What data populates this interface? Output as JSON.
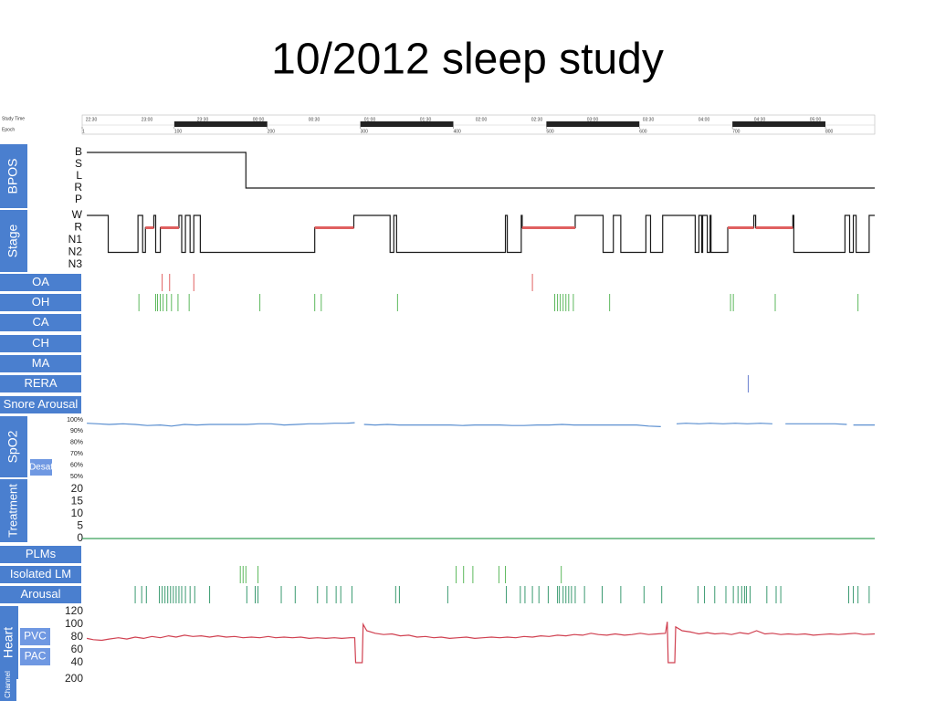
{
  "title": "10/2012 sleep study",
  "timeline": {
    "study_time_label": "Study Time",
    "epoch_label": "Epoch",
    "times": [
      "22:30",
      "23:00",
      "23:30",
      "00:00",
      "00:30",
      "01:00",
      "01:30",
      "02:00",
      "02:30",
      "03:00",
      "03:30",
      "04:00",
      "04:30",
      "05:00"
    ],
    "epoch_ticks": [
      1,
      100,
      200,
      300,
      400,
      500,
      600,
      700,
      800
    ],
    "xlim": [
      1,
      853
    ]
  },
  "bpos": {
    "label": "BPOS",
    "levels": [
      "B",
      "S",
      "L",
      "R",
      "P"
    ],
    "color": "#1a1a1a",
    "x": [
      6,
      177,
      853
    ],
    "values": [
      "B",
      "R",
      "R"
    ]
  },
  "stage": {
    "label": "Stage",
    "levels": [
      "W",
      "R",
      "N1",
      "N2",
      "N3"
    ],
    "color": "#1a1a1a",
    "highlight": {
      "level": "R",
      "color": "#e06060"
    },
    "x": [
      6,
      29,
      61,
      66,
      69,
      78,
      80,
      85,
      105,
      108,
      112,
      117,
      121,
      128,
      251,
      293,
      332,
      336,
      339,
      456,
      458,
      473,
      474,
      531,
      561,
      572,
      580,
      607,
      612,
      625,
      660,
      664,
      667,
      668,
      673,
      676,
      677,
      695,
      723,
      725,
      765,
      766,
      821,
      826,
      830,
      833,
      847,
      853
    ],
    "values": [
      "W",
      "N2",
      "W",
      "N2",
      "R",
      "W",
      "N2",
      "R",
      "W",
      "N2",
      "W",
      "N2",
      "W",
      "N2",
      "R",
      "W",
      "N2",
      "W",
      "N2",
      "W",
      "N2",
      "W",
      "R",
      "W",
      "N2",
      "W",
      "N2",
      "W",
      "N2",
      "W",
      "N2",
      "W",
      "N2",
      "W",
      "N2",
      "W",
      "N2",
      "R",
      "W",
      "R",
      "W",
      "N2",
      "W",
      "N2",
      "W",
      "N2",
      "W",
      "W"
    ]
  },
  "events": [
    {
      "label": "OA",
      "color": "#e06060",
      "x": [
        87,
        95,
        121,
        485
      ]
    },
    {
      "label": "OH",
      "color": "#5cb85c",
      "x": [
        62,
        80,
        82,
        85,
        88,
        92,
        97,
        104,
        116,
        192,
        251,
        258,
        340,
        509,
        512,
        515,
        518,
        521,
        524,
        529,
        568,
        698,
        701,
        746,
        835
      ]
    },
    {
      "label": "CA",
      "x": []
    },
    {
      "label": "CH",
      "x": []
    },
    {
      "label": "MA",
      "x": []
    },
    {
      "label": "RERA",
      "color": "#6a80d0",
      "x": [
        717
      ]
    },
    {
      "label": "Snore Arousal",
      "x": []
    }
  ],
  "spo2": {
    "label": "SpO2",
    "sub_label": "Desat",
    "ylim": [
      50,
      100
    ],
    "yticks": [
      {
        "value": 100,
        "label": "100%"
      },
      {
        "value": 90,
        "label": "90%"
      },
      {
        "value": 80,
        "label": "80%"
      },
      {
        "value": 70,
        "label": "70%"
      },
      {
        "value": 60,
        "label": "60%"
      },
      {
        "value": 50,
        "label": "50%"
      }
    ],
    "color": "#5b8fd0",
    "x": [
      6,
      18,
      30,
      45,
      58,
      71,
      85,
      97,
      111,
      124,
      138,
      151,
      165,
      178,
      191,
      204,
      218,
      232,
      245,
      258,
      272,
      285,
      294,
      299,
      304,
      316,
      329,
      342,
      357,
      370,
      383,
      397,
      410,
      423,
      437,
      450,
      463,
      476,
      490,
      503,
      517,
      530,
      543,
      557,
      570,
      584,
      597,
      610,
      623,
      632,
      640,
      650,
      664,
      676,
      690,
      703,
      716,
      730,
      743,
      749,
      757,
      771,
      784,
      797,
      810,
      823,
      826,
      830,
      842,
      853
    ],
    "values": [
      97,
      96.5,
      96,
      96.5,
      96,
      95,
      95.5,
      94.5,
      96,
      95.5,
      96,
      96,
      96,
      96,
      96.5,
      96.5,
      95.5,
      96,
      96.5,
      96.5,
      97,
      97,
      97.5,
      null,
      96,
      95.5,
      96,
      95.5,
      95.5,
      95.5,
      95.5,
      95.5,
      95,
      95.5,
      95.5,
      95.5,
      95,
      95,
      95.5,
      95.5,
      96,
      95.5,
      95.5,
      95.5,
      95.5,
      95.5,
      95.5,
      94.5,
      94,
      null,
      96.5,
      97,
      96.5,
      97,
      96.5,
      97,
      96.5,
      97,
      96.5,
      null,
      96.5,
      96.5,
      96.5,
      96.5,
      96.5,
      96,
      null,
      95.5,
      95.5,
      95.5
    ]
  },
  "treatment": {
    "label": "Treatment",
    "ylim": [
      0,
      20
    ],
    "yticks": [
      20,
      15,
      10,
      5,
      0
    ],
    "color": "#3aa05a",
    "x": [
      1,
      853
    ],
    "values": [
      0,
      0
    ]
  },
  "limb_rows": [
    {
      "label": "PLMs",
      "x": []
    },
    {
      "label": "Isolated LM",
      "color": "#5cb85c",
      "x": [
        171,
        174,
        177,
        190,
        403,
        411,
        421,
        449,
        456,
        516
      ]
    },
    {
      "label": "Arousal",
      "color": "#3a9a70",
      "x": [
        58,
        65,
        70,
        84,
        87,
        90,
        93,
        96,
        99,
        102,
        105,
        108,
        112,
        117,
        122,
        138,
        178,
        187,
        190,
        215,
        230,
        254,
        264,
        274,
        279,
        291,
        338,
        342,
        394,
        457,
        472,
        477,
        485,
        492,
        502,
        512,
        514,
        518,
        521,
        524,
        527,
        531,
        541,
        560,
        580,
        605,
        624,
        663,
        670,
        681,
        693,
        701,
        706,
        710,
        713,
        715,
        719,
        737,
        747,
        752,
        825,
        830,
        835,
        847
      ]
    }
  ],
  "heart": {
    "label": "Heart",
    "sub_labels": [
      "PVC",
      "PAC"
    ],
    "ylim": [
      40,
      120
    ],
    "yticks": [
      120,
      100,
      80,
      60,
      40
    ],
    "color": "#d04050",
    "x": [
      6,
      13,
      22,
      30,
      40,
      49,
      58,
      67,
      76,
      85,
      94,
      102,
      111,
      120,
      129,
      138,
      147,
      156,
      165,
      174,
      183,
      192,
      201,
      209,
      218,
      227,
      236,
      245,
      254,
      263,
      272,
      280,
      289,
      294,
      295,
      302,
      303,
      307,
      316,
      325,
      334,
      343,
      352,
      361,
      370,
      379,
      387,
      396,
      405,
      414,
      423,
      432,
      441,
      450,
      458,
      467,
      476,
      485,
      494,
      503,
      512,
      521,
      530,
      539,
      548,
      556,
      565,
      574,
      584,
      592,
      601,
      610,
      619,
      628,
      630,
      631,
      638,
      639,
      646,
      655,
      664,
      673,
      681,
      690,
      699,
      708,
      717,
      726,
      735,
      743,
      752,
      760,
      769,
      778,
      787,
      796,
      805,
      814,
      823,
      832,
      841,
      853
    ],
    "values": [
      78,
      76,
      75,
      77,
      79,
      77,
      80,
      78,
      81,
      79,
      82,
      80,
      83,
      81,
      82,
      80,
      82,
      80,
      81,
      79,
      80,
      79,
      81,
      79,
      80,
      79,
      80,
      78,
      79,
      78,
      79,
      78,
      79,
      79,
      40,
      40,
      100,
      90,
      86,
      84,
      85,
      82,
      83,
      80,
      81,
      79,
      80,
      78,
      79,
      80,
      78,
      79,
      80,
      79,
      80,
      79,
      81,
      80,
      82,
      81,
      83,
      82,
      84,
      83,
      86,
      84,
      83,
      85,
      83,
      84,
      86,
      84,
      85,
      86,
      104,
      40,
      40,
      96,
      90,
      88,
      85,
      87,
      85,
      86,
      84,
      87,
      85,
      90,
      85,
      86,
      84,
      85,
      84,
      85,
      83,
      84,
      85,
      84,
      85,
      86,
      84,
      85
    ]
  },
  "channel": {
    "label": "Channel",
    "yticks": [
      200
    ]
  }
}
